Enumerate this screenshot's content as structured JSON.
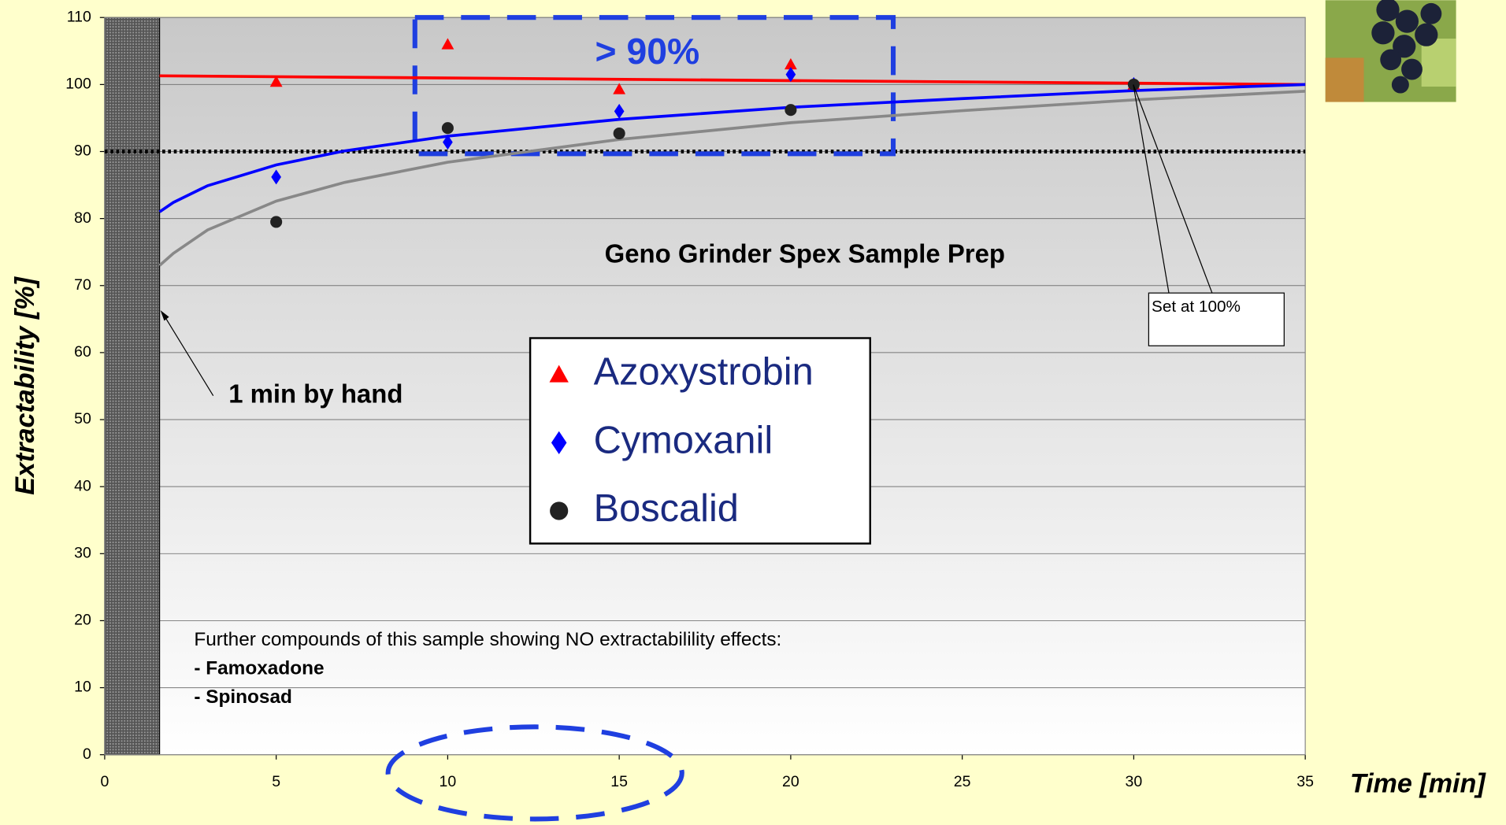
{
  "chart_data": {
    "type": "scatter",
    "ylabel": "Extractability [%]",
    "xlabel": "Time [min]",
    "xlim": [
      0,
      35
    ],
    "ylim": [
      0,
      110
    ],
    "xticks": [
      0,
      5,
      10,
      15,
      20,
      25,
      30,
      35
    ],
    "yticks": [
      0,
      10,
      20,
      30,
      40,
      50,
      60,
      70,
      80,
      90,
      100,
      110
    ],
    "grid": true,
    "reference_y": 90,
    "hand_region": [
      0,
      1.6
    ],
    "x": [
      5,
      10,
      15,
      20,
      30
    ],
    "series": [
      {
        "name": "Azoxystrobin",
        "color": "#ff0000",
        "marker": "triangle",
        "values": [
          100.4,
          106,
          99.3,
          103,
          100
        ]
      },
      {
        "name": "Cymoxanil",
        "color": "#0000ff",
        "marker": "diamond",
        "values": [
          86.2,
          91.4,
          96,
          101.5,
          100
        ]
      },
      {
        "name": "Boscalid",
        "color": "#222222",
        "marker": "circle",
        "values": [
          79.5,
          93.5,
          92.7,
          96.2,
          100
        ]
      }
    ],
    "trendlines": [
      {
        "color": "#ff0000",
        "x": [
          1.6,
          35
        ],
        "values": [
          101.3,
          100
        ]
      },
      {
        "color": "#0000ff",
        "x": [
          1.6,
          2,
          3,
          5,
          7,
          10,
          15,
          20,
          25,
          30,
          35
        ],
        "values": [
          81.0,
          82.4,
          84.9,
          88.0,
          90.1,
          92.3,
          94.8,
          96.6,
          97.9,
          99.1,
          100.0
        ]
      },
      {
        "color": "#888888",
        "x": [
          1.6,
          2,
          3,
          5,
          7,
          10,
          15,
          20,
          25,
          30,
          35
        ],
        "values": [
          73.0,
          74.8,
          78.3,
          82.6,
          85.4,
          88.4,
          91.8,
          94.3,
          96.1,
          97.7,
          99.0
        ]
      }
    ],
    "annotations": {
      "highlight": "> 90%",
      "method": "Geno Grinder Spex Sample Prep",
      "hand": "1 min by hand",
      "reference": "Set at 100%",
      "note": "Further compounds of this sample showing NO extractabilility effects:",
      "compounds": [
        "- Famoxadone",
        "- Spinosad"
      ]
    }
  }
}
